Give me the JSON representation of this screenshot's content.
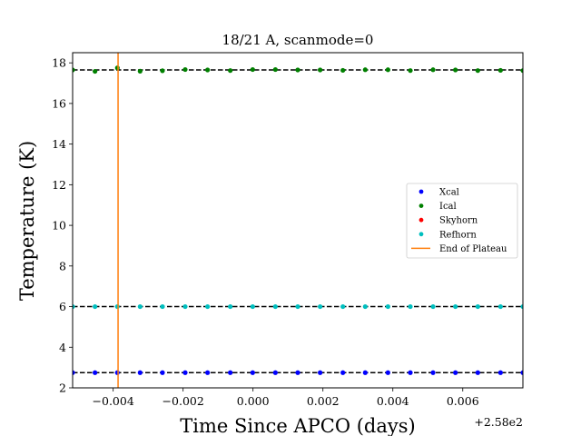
{
  "chart_data": {
    "type": "scatter",
    "title": "18/21 A, scanmode=0",
    "xlabel": "Time Since APCO (days)",
    "ylabel": "Temperature (K)",
    "x_offset_label": "+2.58e2",
    "xlim": [
      257.99484,
      258.00772
    ],
    "ylim": [
      2,
      18.5
    ],
    "grid": false,
    "legend_placement": "center-right",
    "x_ticks": [
      {
        "value": 257.996,
        "label": "−0.004"
      },
      {
        "value": 257.998,
        "label": "−0.002"
      },
      {
        "value": 258.0,
        "label": "0.000"
      },
      {
        "value": 258.002,
        "label": "0.002"
      },
      {
        "value": 258.004,
        "label": "0.004"
      },
      {
        "value": 258.006,
        "label": "0.006"
      }
    ],
    "y_ticks": [
      {
        "value": 2,
        "label": "2"
      },
      {
        "value": 4,
        "label": "4"
      },
      {
        "value": 6,
        "label": "6"
      },
      {
        "value": 8,
        "label": "8"
      },
      {
        "value": 10,
        "label": "10"
      },
      {
        "value": 12,
        "label": "12"
      },
      {
        "value": 14,
        "label": "14"
      },
      {
        "value": 16,
        "label": "16"
      },
      {
        "value": 18,
        "label": "18"
      }
    ],
    "x": [
      257.99484,
      257.99548,
      257.99612,
      257.99677,
      257.99741,
      257.99806,
      257.9987,
      257.99935,
      257.99999,
      258.00064,
      258.00128,
      258.00192,
      258.00257,
      258.00321,
      258.00386,
      258.0045,
      258.00515,
      258.00579,
      258.00643,
      258.00708,
      258.00772
    ],
    "series": [
      {
        "name": "Xcal",
        "color": "#0000ff",
        "marker": "circle",
        "values": [
          2.75,
          2.75,
          2.75,
          2.75,
          2.75,
          2.75,
          2.75,
          2.75,
          2.75,
          2.75,
          2.75,
          2.75,
          2.75,
          2.75,
          2.75,
          2.75,
          2.75,
          2.75,
          2.75,
          2.75,
          2.75
        ]
      },
      {
        "name": "Ical",
        "color": "#008000",
        "marker": "circle",
        "values": [
          17.65,
          17.58,
          17.75,
          17.59,
          17.61,
          17.67,
          17.65,
          17.62,
          17.67,
          17.67,
          17.65,
          17.65,
          17.63,
          17.66,
          17.66,
          17.62,
          17.66,
          17.65,
          17.62,
          17.63,
          17.62
        ]
      },
      {
        "name": "Skyhorn",
        "color": "#ff0000",
        "marker": "circle",
        "values": []
      },
      {
        "name": "Refhorn",
        "color": "#00bfbf",
        "marker": "circle",
        "values": [
          6.0,
          6.0,
          6.0,
          6.0,
          6.0,
          6.0,
          6.0,
          6.0,
          6.0,
          6.0,
          6.0,
          6.0,
          6.0,
          6.0,
          6.0,
          6.0,
          6.0,
          6.0,
          6.0,
          6.0,
          6.0
        ]
      }
    ],
    "hlines": [
      {
        "y": 17.65,
        "color": "#000000",
        "style": "dashed"
      },
      {
        "y": 6.0,
        "color": "#000000",
        "style": "dashed"
      },
      {
        "y": 2.75,
        "color": "#000000",
        "style": "dashed"
      }
    ],
    "vlines": [
      {
        "name": "End of Plateau",
        "x": 257.99614,
        "color": "#ff7f0e"
      }
    ],
    "legend": [
      {
        "label": "Xcal",
        "kind": "dot",
        "color": "#0000ff"
      },
      {
        "label": "Ical",
        "kind": "dot",
        "color": "#008000"
      },
      {
        "label": "Skyhorn",
        "kind": "dot",
        "color": "#ff0000"
      },
      {
        "label": "Refhorn",
        "kind": "dot",
        "color": "#00bfbf"
      },
      {
        "label": "End of Plateau",
        "kind": "line",
        "color": "#ff7f0e"
      }
    ]
  }
}
